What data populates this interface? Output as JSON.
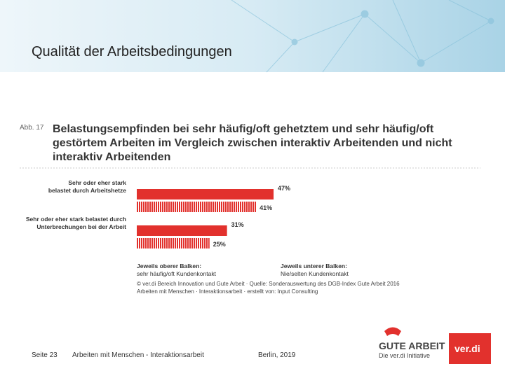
{
  "slide_title": "Qualität der Arbeitsbedingungen",
  "figure_label": "Abb. 17",
  "chart_data": {
    "type": "bar",
    "orientation": "horizontal",
    "title": "Belastungsempfinden bei sehr häufig/oft gehetztem und sehr häufig/oft gestörtem Arbeiten im Vergleich zwischen interaktiv Arbeitenden und nicht interaktiv Arbeitenden",
    "categories": [
      "Sehr oder eher stark belastet durch Arbeitshetze",
      "Sehr oder eher stark belastet durch Unterbrechungen bei der Arbeit"
    ],
    "series": [
      {
        "name": "sehr häufig/oft Kundenkontakt",
        "legend_heading": "Jeweils oberer Balken:",
        "color": "#e2312d",
        "pattern": "solid",
        "values": [
          47,
          31
        ],
        "value_labels": [
          "47%",
          "31%"
        ]
      },
      {
        "name": "Nie/selten Kundenkontakt",
        "legend_heading": "Jeweils unterer Balken:",
        "color": "#e2312d",
        "pattern": "hatched",
        "values": [
          41,
          25
        ],
        "value_labels": [
          "41%",
          "25%"
        ]
      }
    ],
    "source": [
      "© ver.di Bereich Innovation und Gute Arbeit · Quelle: Sonderauswertung des DGB-Index Gute Arbeit 2016",
      "Arbeiten mit Menschen · Interaktionsarbeit · erstellt von: Input Consulting"
    ]
  },
  "footer": {
    "page": "Seite 23",
    "topic": "Arbeiten mit Menschen - Interaktionsarbeit",
    "place_date": "Berlin, 2019"
  },
  "logos": {
    "gute_arbeit": "GUTE ARBEIT",
    "initiative": "Die ver.di Initiative",
    "verdi": "ver.di"
  }
}
